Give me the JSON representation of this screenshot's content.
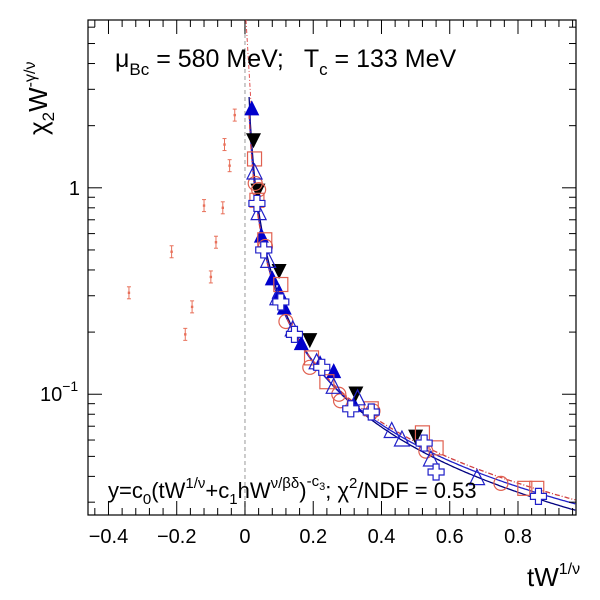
{
  "chart_data": {
    "type": "scatter",
    "title": "",
    "annotation_top": {
      "mu_label": "μ",
      "mu_sub": "Bc",
      "mu_value": " = 580 MeV;",
      "t_label": "T",
      "t_sub": "c",
      "t_value": " = 133 MeV"
    },
    "annotation_bottom": {
      "p1": "y=c",
      "s1": "0",
      "p2": "(tW",
      "u1": "1/ν",
      "p3": "+c",
      "s2": "1",
      "p4": "hW",
      "u2": "ν/βδ",
      "p5": ")",
      "u3": "-c",
      "u3s": "3",
      "p6": ";  χ",
      "u4": "2",
      "p7": "/NDF = 0.53"
    },
    "ylabel": {
      "base": "χ",
      "sub": "2",
      "w": "W",
      "sup": "-γ/ν"
    },
    "xlabel": {
      "base": "tW",
      "sup": "1/ν"
    },
    "xlim": [
      -0.46,
      0.97
    ],
    "ylim": [
      0.026,
      6.5
    ],
    "yscale": "log",
    "x_ticks": [
      {
        "value": -0.4,
        "label": "−0.4"
      },
      {
        "value": -0.2,
        "label": "−0.2"
      },
      {
        "value": 0,
        "label": "0"
      },
      {
        "value": 0.2,
        "label": "0.2"
      },
      {
        "value": 0.4,
        "label": "0.4"
      },
      {
        "value": 0.6,
        "label": "0.6"
      },
      {
        "value": 0.8,
        "label": "0.8"
      }
    ],
    "y_ticks": [
      {
        "value": 1,
        "label": "1"
      },
      {
        "value": 0.1,
        "label": "10",
        "exp": "−1"
      }
    ],
    "vline_x": 0,
    "colors": {
      "red": "#e8705a",
      "blue": "#2020c8",
      "navy": "#000080",
      "black": "#000000",
      "darkred": "#aa3322",
      "grid": "#aaaaaa"
    },
    "series": [
      {
        "marker": "small-errorbar",
        "color": "#e8705a",
        "x": [
          -0.34,
          -0.215,
          -0.175,
          -0.155,
          -0.12,
          -0.1,
          -0.085,
          -0.065,
          -0.06,
          -0.045,
          -0.03
        ],
        "y": [
          0.31,
          0.49,
          0.195,
          0.265,
          0.82,
          0.37,
          0.545,
          0.8,
          1.62,
          1.28,
          2.25
        ]
      },
      {
        "marker": "filled-triangle-up",
        "color": "#0000cc",
        "x": [
          0.02,
          0.048,
          0.08,
          0.1,
          0.115,
          0.165,
          0.22,
          0.26,
          0.32
        ],
        "y": [
          2.4,
          0.58,
          0.36,
          0.31,
          0.26,
          0.175,
          0.14,
          0.128,
          0.088
        ]
      },
      {
        "marker": "filled-triangle-down",
        "color": "#000000",
        "x": [
          0.025,
          0.038,
          0.1,
          0.19,
          0.325,
          0.5
        ],
        "y": [
          1.72,
          0.98,
          0.4,
          0.185,
          0.102,
          0.063
        ]
      },
      {
        "marker": "open-square",
        "color": "#e06050",
        "x": [
          0.028,
          0.035,
          0.058,
          0.105,
          0.195,
          0.24,
          0.37,
          0.52,
          0.56,
          0.82,
          0.855
        ],
        "y": [
          1.38,
          0.87,
          0.56,
          0.34,
          0.15,
          0.115,
          0.085,
          0.065,
          0.055,
          0.035,
          0.035
        ]
      },
      {
        "marker": "open-circle",
        "color": "#e06050",
        "x": [
          0.03,
          0.04,
          0.06,
          0.12,
          0.19,
          0.275,
          0.28,
          0.375,
          0.53,
          0.75
        ],
        "y": [
          1.05,
          0.98,
          0.52,
          0.225,
          0.135,
          0.1,
          0.093,
          0.083,
          0.053,
          0.037
        ]
      },
      {
        "marker": "open-triangle-up",
        "color": "#2020c8",
        "x": [
          0.028,
          0.04,
          0.068,
          0.095,
          0.14,
          0.21,
          0.26,
          0.33,
          0.43,
          0.46,
          0.545,
          0.68
        ],
        "y": [
          1.18,
          0.75,
          0.44,
          0.29,
          0.205,
          0.142,
          0.108,
          0.095,
          0.066,
          0.06,
          0.048,
          0.039
        ]
      },
      {
        "marker": "open-cross",
        "color": "#2020c8",
        "x": [
          0.035,
          0.055,
          0.105,
          0.145,
          0.225,
          0.31,
          0.37,
          0.525,
          0.56,
          0.86
        ],
        "y": [
          0.84,
          0.5,
          0.28,
          0.195,
          0.135,
          0.085,
          0.082,
          0.058,
          0.042,
          0.032
        ]
      }
    ],
    "fit_curves": [
      {
        "color": "#000080",
        "c3": 1.05,
        "scale": 0.0265
      },
      {
        "color": "#2020c8",
        "c3": 1.0,
        "scale": 0.0285
      },
      {
        "color": "#d04040",
        "c3": 0.98,
        "scale": 0.0298
      }
    ]
  }
}
